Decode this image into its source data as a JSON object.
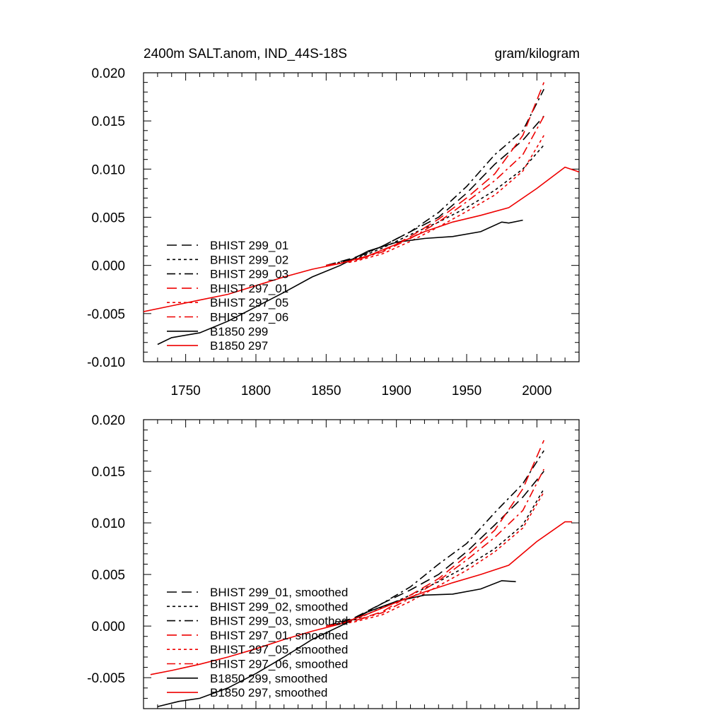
{
  "figure": {
    "title": "2400m SALT.anom, IND_44S-18S",
    "units": "gram/kilogram",
    "colors": {
      "bhist_299": "#000000",
      "bhist_297": "#ee0000",
      "b1850_299": "#000000",
      "b1850_297": "#ee0000"
    },
    "legend_placement": "lower-left"
  },
  "chart_data": [
    {
      "type": "line",
      "title": "2400m SALT.anom, IND_44S-18S",
      "units": "gram/kilogram",
      "xlim": [
        1720,
        2030
      ],
      "ylim": [
        -0.01,
        0.02
      ],
      "xticks": [
        1750,
        1800,
        1850,
        1900,
        1950,
        2000
      ],
      "xtick_labels": [
        "1750",
        "1800",
        "1850",
        "1900",
        "1950",
        "2000"
      ],
      "yticks": [
        -0.01,
        -0.005,
        0.0,
        0.005,
        0.01,
        0.015,
        0.02
      ],
      "ytick_labels": [
        "-0.010",
        "-0.005",
        "0.000",
        "0.005",
        "0.010",
        "0.015",
        "0.020"
      ],
      "legend_placement": "lower-left",
      "series": [
        {
          "name": "BHIST 299_01",
          "color": "#000000",
          "dash": "long-dash",
          "x": [
            1850,
            1870,
            1890,
            1910,
            1930,
            1950,
            1970,
            1990,
            2005
          ],
          "y": [
            0.0,
            0.0008,
            0.002,
            0.0035,
            0.005,
            0.0075,
            0.0105,
            0.013,
            0.0155
          ]
        },
        {
          "name": "BHIST 299_02",
          "color": "#000000",
          "dash": "dot",
          "x": [
            1850,
            1870,
            1890,
            1910,
            1930,
            1950,
            1970,
            1990,
            2005
          ],
          "y": [
            0.0,
            0.0006,
            0.0018,
            0.0032,
            0.0045,
            0.006,
            0.0078,
            0.01,
            0.0125
          ]
        },
        {
          "name": "BHIST 299_03",
          "color": "#000000",
          "dash": "dash-dot",
          "x": [
            1850,
            1870,
            1890,
            1910,
            1930,
            1950,
            1970,
            1990,
            2005
          ],
          "y": [
            0.0,
            0.0007,
            0.002,
            0.0035,
            0.0055,
            0.0082,
            0.0115,
            0.014,
            0.0183
          ]
        },
        {
          "name": "BHIST 297_01",
          "color": "#ee0000",
          "dash": "long-dash",
          "x": [
            1850,
            1870,
            1890,
            1910,
            1930,
            1950,
            1970,
            1990,
            2005
          ],
          "y": [
            0.0,
            0.0005,
            0.0015,
            0.003,
            0.0048,
            0.007,
            0.0095,
            0.0135,
            0.019
          ]
        },
        {
          "name": "BHIST 297_05",
          "color": "#ee0000",
          "dash": "dot",
          "x": [
            1850,
            1870,
            1890,
            1910,
            1930,
            1950,
            1970,
            1990,
            2005
          ],
          "y": [
            0.0,
            0.0004,
            0.0012,
            0.0025,
            0.004,
            0.0056,
            0.0073,
            0.0098,
            0.0135
          ]
        },
        {
          "name": "BHIST 297_06",
          "color": "#ee0000",
          "dash": "dash-dot",
          "x": [
            1850,
            1870,
            1890,
            1910,
            1930,
            1950,
            1970,
            1990,
            2005
          ],
          "y": [
            0.0,
            0.0005,
            0.0014,
            0.0028,
            0.0045,
            0.0066,
            0.0088,
            0.0115,
            0.0155
          ]
        },
        {
          "name": "B1850 299",
          "color": "#000000",
          "dash": "solid",
          "x": [
            1730,
            1740,
            1760,
            1780,
            1800,
            1820,
            1840,
            1860,
            1880,
            1900,
            1920,
            1940,
            1960,
            1975,
            1980,
            1990
          ],
          "y": [
            -0.0082,
            -0.0075,
            -0.007,
            -0.0058,
            -0.0043,
            -0.0028,
            -0.0012,
            0.0,
            0.0015,
            0.0024,
            0.0028,
            0.003,
            0.0035,
            0.0045,
            0.0044,
            0.0047
          ]
        },
        {
          "name": "B1850 297",
          "color": "#ee0000",
          "dash": "solid",
          "x": [
            1720,
            1740,
            1760,
            1780,
            1800,
            1820,
            1840,
            1860,
            1880,
            1900,
            1920,
            1940,
            1960,
            1980,
            2000,
            2020,
            2030
          ],
          "y": [
            -0.0048,
            -0.0042,
            -0.0036,
            -0.003,
            -0.0021,
            -0.0012,
            -0.0004,
            0.0002,
            0.001,
            0.0022,
            0.0035,
            0.0045,
            0.0052,
            0.006,
            0.008,
            0.0102,
            0.0097
          ]
        }
      ]
    },
    {
      "type": "line",
      "xlim": [
        1720,
        2030
      ],
      "ylim": [
        -0.008,
        0.02
      ],
      "xticks": [
        1750,
        1800,
        1850,
        1900,
        1950,
        2000
      ],
      "yticks": [
        -0.005,
        0.0,
        0.005,
        0.01,
        0.015,
        0.02
      ],
      "ytick_labels": [
        "-0.005",
        "0.000",
        "0.005",
        "0.010",
        "0.015",
        "0.020"
      ],
      "legend_placement": "lower-left",
      "series": [
        {
          "name": "BHIST 299_01, smoothed",
          "color": "#000000",
          "dash": "long-dash",
          "x": [
            1850,
            1870,
            1890,
            1910,
            1930,
            1950,
            1970,
            1990,
            2005
          ],
          "y": [
            0.0,
            0.0008,
            0.0022,
            0.0035,
            0.005,
            0.0072,
            0.0098,
            0.0125,
            0.015
          ]
        },
        {
          "name": "BHIST 299_02, smoothed",
          "color": "#000000",
          "dash": "dot",
          "x": [
            1850,
            1870,
            1890,
            1910,
            1930,
            1950,
            1970,
            1990,
            2005
          ],
          "y": [
            0.0,
            0.0006,
            0.0018,
            0.003,
            0.0043,
            0.0058,
            0.0075,
            0.0098,
            0.0133
          ]
        },
        {
          "name": "BHIST 299_03, smoothed",
          "color": "#000000",
          "dash": "dash-dot",
          "x": [
            1850,
            1870,
            1890,
            1910,
            1930,
            1950,
            1970,
            1990,
            2005
          ],
          "y": [
            0.0,
            0.0007,
            0.0022,
            0.0038,
            0.006,
            0.008,
            0.011,
            0.0138,
            0.017
          ]
        },
        {
          "name": "BHIST 297_01, smoothed",
          "color": "#ee0000",
          "dash": "long-dash",
          "x": [
            1850,
            1870,
            1890,
            1910,
            1930,
            1950,
            1970,
            1990,
            2005
          ],
          "y": [
            0.0,
            0.0005,
            0.0014,
            0.003,
            0.0046,
            0.0068,
            0.0093,
            0.0133,
            0.018
          ]
        },
        {
          "name": "BHIST 297_05, smoothed",
          "color": "#ee0000",
          "dash": "dot",
          "x": [
            1850,
            1870,
            1890,
            1910,
            1930,
            1950,
            1970,
            1990,
            2005
          ],
          "y": [
            0.0,
            0.0004,
            0.0011,
            0.0024,
            0.0039,
            0.0054,
            0.0072,
            0.0095,
            0.013
          ]
        },
        {
          "name": "BHIST 297_06, smoothed",
          "color": "#ee0000",
          "dash": "dash-dot",
          "x": [
            1850,
            1870,
            1890,
            1910,
            1930,
            1950,
            1970,
            1990,
            2005
          ],
          "y": [
            0.0,
            0.0005,
            0.0013,
            0.0027,
            0.0044,
            0.0064,
            0.0086,
            0.0112,
            0.0152
          ]
        },
        {
          "name": "B1850 299, smoothed",
          "color": "#000000",
          "dash": "solid",
          "x": [
            1730,
            1745,
            1760,
            1780,
            1800,
            1820,
            1840,
            1860,
            1880,
            1900,
            1920,
            1940,
            1960,
            1975,
            1985
          ],
          "y": [
            -0.0078,
            -0.0073,
            -0.007,
            -0.006,
            -0.0046,
            -0.003,
            -0.0013,
            0.0,
            0.0014,
            0.0024,
            0.003,
            0.0031,
            0.0036,
            0.0044,
            0.0043
          ]
        },
        {
          "name": "B1850 297, smoothed",
          "color": "#ee0000",
          "dash": "solid",
          "x": [
            1725,
            1740,
            1760,
            1780,
            1800,
            1820,
            1840,
            1860,
            1880,
            1900,
            1920,
            1940,
            1960,
            1980,
            2000,
            2020,
            2025
          ],
          "y": [
            -0.0047,
            -0.0043,
            -0.0037,
            -0.003,
            -0.0022,
            -0.0013,
            -0.0005,
            0.0002,
            0.0012,
            0.0023,
            0.0033,
            0.0042,
            0.005,
            0.0059,
            0.0082,
            0.0101,
            0.0101
          ]
        }
      ]
    }
  ]
}
